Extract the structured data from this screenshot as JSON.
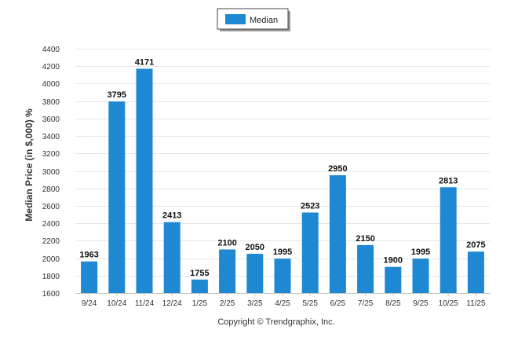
{
  "chart_data": {
    "type": "bar",
    "categories": [
      "9/24",
      "10/24",
      "11/24",
      "12/24",
      "1/25",
      "2/25",
      "3/25",
      "4/25",
      "5/25",
      "6/25",
      "7/25",
      "8/25",
      "9/25",
      "10/25",
      "11/25"
    ],
    "series": [
      {
        "name": "Median",
        "values": [
          1963,
          3795,
          4171,
          2413,
          1755,
          2100,
          2050,
          1995,
          2523,
          2950,
          2150,
          1900,
          1995,
          2813,
          2075
        ]
      }
    ],
    "ylabel": "Median Price (in $,000) %",
    "xlabel": "",
    "ylim": [
      1600,
      4400
    ],
    "yticks": [
      1600,
      1800,
      2000,
      2200,
      2400,
      2600,
      2800,
      3000,
      3200,
      3400,
      3600,
      3800,
      4000,
      4200,
      4400
    ],
    "grid": true,
    "legend_position": "top-center",
    "bar_color": "#1f88d2",
    "grid_color": "#e6e6e6",
    "data_labels": true
  },
  "credit": "Copyright © Trendgraphix, Inc."
}
